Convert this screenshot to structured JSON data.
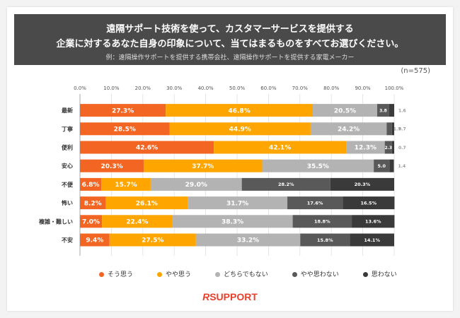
{
  "header": {
    "title_line1": "遠隔サポート技術を使って、カスタマーサービスを提供する",
    "title_line2": "企業に対するあなた自身の印象について、当てはまるものをすべてお選びください。",
    "subtitle": "例：遠隔操作サポートを提供する携帯会社、遠隔操作サポートを提供する家電メーカー"
  },
  "sample_size": "(n=575)",
  "logo": {
    "mark": "R",
    "text": "SUPPORT"
  },
  "chart_data": {
    "type": "bar",
    "orientation": "horizontal",
    "stacked": true,
    "xlim": [
      0,
      100
    ],
    "x_ticks": [
      "0.0%",
      "10.0%",
      "20.0%",
      "30.0%",
      "40.0%",
      "50.0%",
      "60.0%",
      "70.0%",
      "80.0%",
      "90.0%",
      "100.0%"
    ],
    "grid": true,
    "legend_position": "bottom",
    "categories": [
      "最新",
      "丁寧",
      "便利",
      "安心",
      "不便",
      "怖い",
      "複雑・難しい",
      "不安"
    ],
    "series": [
      {
        "name": "そう思う",
        "color": "#f26522",
        "values": [
          27.3,
          28.5,
          42.6,
          20.3,
          6.8,
          8.2,
          7.0,
          9.4
        ]
      },
      {
        "name": "やや思う",
        "color": "#ffa500",
        "values": [
          46.8,
          44.9,
          42.1,
          37.7,
          15.7,
          26.1,
          22.4,
          27.5
        ]
      },
      {
        "name": "どちらでもない",
        "color": "#b3b3b3",
        "values": [
          20.5,
          24.2,
          12.3,
          35.5,
          29.0,
          31.7,
          38.3,
          33.2
        ]
      },
      {
        "name": "やや思わない",
        "color": "#595959",
        "values": [
          3.8,
          1.7,
          2.3,
          5.0,
          28.2,
          17.6,
          18.8,
          15.8
        ]
      },
      {
        "name": "思わない",
        "color": "#3a3a3a",
        "values": [
          1.6,
          0.7,
          0.7,
          1.4,
          20.3,
          16.5,
          13.6,
          14.1
        ]
      }
    ],
    "labels": [
      [
        "27.3%",
        "46.8%",
        "20.5%",
        "3.8",
        "1.6"
      ],
      [
        "28.5%",
        "44.9%",
        "24.2%",
        "1.7",
        "0.7"
      ],
      [
        "42.6%",
        "42.1%",
        "12.3%",
        "2.3",
        "0.7"
      ],
      [
        "20.3%",
        "37.7%",
        "35.5%",
        "5.0",
        "1.4"
      ],
      [
        "6.8%",
        "15.7%",
        "29.0%",
        "28.2%",
        "20.3%"
      ],
      [
        "8.2%",
        "26.1%",
        "31.7%",
        "17.6%",
        "16.5%"
      ],
      [
        "7.0%",
        "22.4%",
        "38.3%",
        "18.8%",
        "13.6%"
      ],
      [
        "9.4%",
        "27.5%",
        "33.2%",
        "15.8%",
        "14.1%"
      ]
    ]
  }
}
